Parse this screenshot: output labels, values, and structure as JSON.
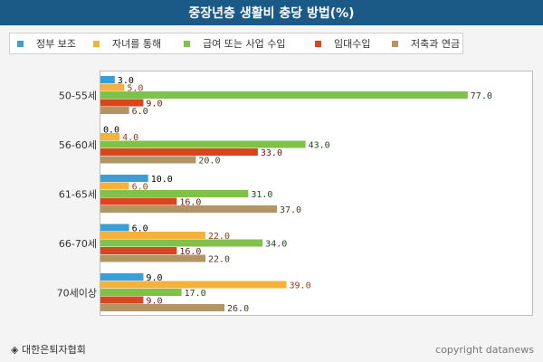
{
  "page": {
    "title": "중장년층 생활비 충당 방법(%)",
    "source": "대한은퇴자협회",
    "source_icon": "diamond-bullet-icon",
    "copyright": "copyright datanews"
  },
  "chart_data": {
    "type": "bar",
    "orientation": "horizontal",
    "title": "중장년층 생활비 충당 방법(%)",
    "xlim": [
      0,
      85
    ],
    "grid": false,
    "legend_position": "top",
    "categories": [
      "50-55세",
      "56-60세",
      "61-65세",
      "66-70세",
      "70세이상"
    ],
    "series": [
      {
        "name": "정부 보조",
        "color": "#3a9fd8",
        "label_color": "#000000",
        "values": [
          3.0,
          0.0,
          10.0,
          6.0,
          9.0
        ]
      },
      {
        "name": "자녀를 통해",
        "color": "#f5b23a",
        "label_color": "#9a3a10",
        "values": [
          5.0,
          4.0,
          6.0,
          22.0,
          39.0
        ]
      },
      {
        "name": "급여 또는 사업 수입",
        "color": "#7fc24a",
        "label_color": "#1a4a1a",
        "values": [
          77.0,
          43.0,
          31.0,
          34.0,
          17.0
        ]
      },
      {
        "name": "임대수입",
        "color": "#d8461e",
        "label_color": "#7a1010",
        "values": [
          9.0,
          33.0,
          16.0,
          16.0,
          9.0
        ]
      },
      {
        "name": "저축과 연금",
        "color": "#b39464",
        "label_color": "#4a3a2a",
        "values": [
          6.0,
          20.0,
          37.0,
          22.0,
          26.0
        ]
      }
    ]
  }
}
